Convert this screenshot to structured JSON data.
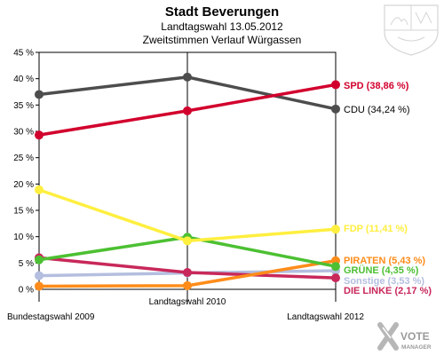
{
  "chart_data": {
    "type": "line",
    "title": "Stadt Beverungen",
    "subtitle_1": "Landtagswahl 13.05.2012",
    "subtitle_2": "Zweitstimmen Verlauf Würgassen",
    "categories": [
      "Bundestagswahl 2009",
      "Landtagswahl 2010",
      "Landtagswahl 2012"
    ],
    "y_ticks": [
      "0 %",
      "5 %",
      "10 %",
      "15 %",
      "20 %",
      "25 %",
      "30 %",
      "35 %",
      "40 %",
      "45 %"
    ],
    "ylim": [
      0,
      45
    ],
    "grid": false,
    "series": [
      {
        "name": "SPD",
        "label": "SPD (38,86 %)",
        "color": "#d2002d",
        "values": [
          29.3,
          33.9,
          38.86
        ]
      },
      {
        "name": "CDU",
        "label": "CDU (34,24 %)",
        "color": "#4d4d4d",
        "values": [
          37.0,
          40.3,
          34.24
        ]
      },
      {
        "name": "FDP",
        "label": "FDP (11,41 %)",
        "color": "#ffef3f",
        "values": [
          18.9,
          9.2,
          11.41
        ]
      },
      {
        "name": "PIRATEN",
        "label": "PIRATEN (5,43 %)",
        "color": "#ff8c1a",
        "values": [
          0.6,
          0.7,
          5.43
        ]
      },
      {
        "name": "GRÜNE",
        "label": "GRÜNE (4,35 %)",
        "color": "#4cc032",
        "values": [
          5.6,
          9.9,
          4.35
        ]
      },
      {
        "name": "Sonstige",
        "label": "Sonstige (3,53 %)",
        "color": "#b4bedf",
        "values": [
          2.6,
          3.1,
          3.53
        ]
      },
      {
        "name": "DIE LINKE",
        "label": "DIE LINKE (2,17 %)",
        "color": "#c8285a",
        "values": [
          6.0,
          3.2,
          2.17
        ]
      }
    ]
  },
  "watermark": {
    "line1": "VOTE",
    "line2": "MANAGER",
    "icon": "vote-manager-x-icon"
  },
  "crest": {
    "icon": "nrw-coat-of-arms-icon"
  }
}
